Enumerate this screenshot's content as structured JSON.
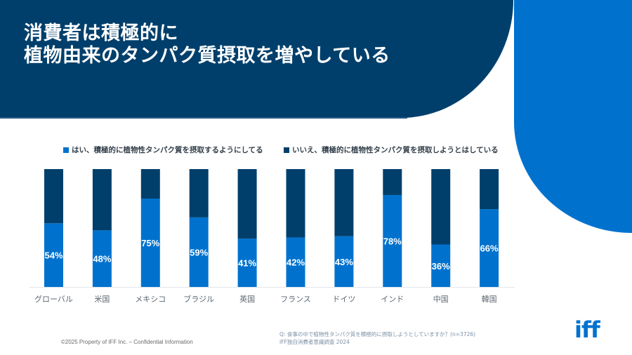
{
  "slide": {
    "title_lines": [
      "消費者は積極的に",
      "植物由来のタンパク質摂取を増やしている"
    ],
    "footnote_lines": [
      "Q: 食事の中で植物性タンパク質を積極的に摂取しようとしていますか？(n=3726)",
      "IFF独自消費者意識調査 2024"
    ],
    "copyright": "©2025 Property of IFF Inc. – Confidential Information",
    "logo_text": "iff",
    "colors": {
      "header_dark": "#003f6b",
      "accent_blue": "#0072ce",
      "yes": "#0072ce",
      "no": "#003f6b"
    }
  },
  "chart_data": {
    "type": "bar",
    "stacked": true,
    "percent_stacked": true,
    "title": "",
    "xlabel": "",
    "ylabel": "",
    "ylim": [
      0,
      100
    ],
    "grid": false,
    "legend_position": "top",
    "categories": [
      "グローバル",
      "米国",
      "メキシコ",
      "ブラジル",
      "英国",
      "フランス",
      "ドイツ",
      "インド",
      "中国",
      "韓国"
    ],
    "series": [
      {
        "name": "はい、積極的に植物性タンパク質を摂取するようにしてる",
        "color": "#0072ce",
        "values": [
          54,
          48,
          75,
          59,
          41,
          42,
          43,
          78,
          36,
          66
        ],
        "labels": [
          "54%",
          "48%",
          "75%",
          "59%",
          "41%",
          "42%",
          "43%",
          "78%",
          "36%",
          "66%"
        ]
      },
      {
        "name": "いいえ、積極的に植物性タンパク質を摂取しようとはしている",
        "color": "#003f6b",
        "values": [
          46,
          52,
          25,
          41,
          59,
          58,
          57,
          22,
          64,
          34
        ]
      }
    ]
  }
}
